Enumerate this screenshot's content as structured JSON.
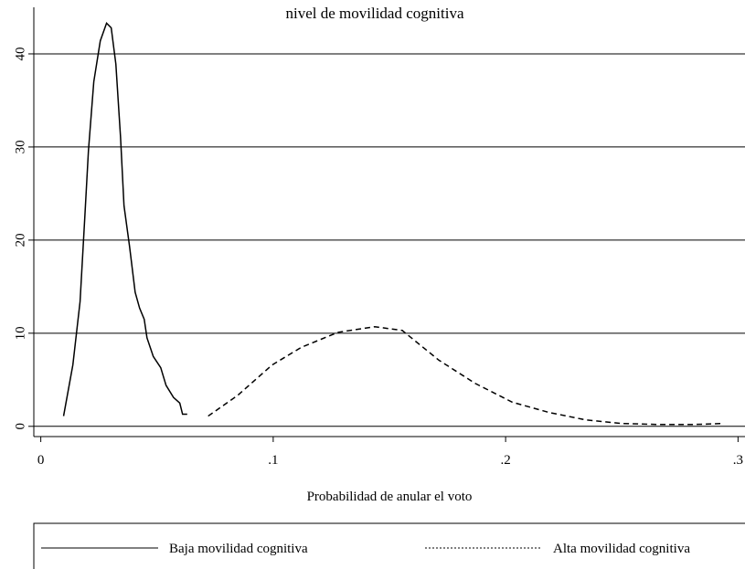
{
  "chart_data": {
    "type": "line",
    "title": "nivel de movilidad cognitiva",
    "x_label": "Probabilidad de anular el voto",
    "xlim": [
      -0.003,
      0.303
    ],
    "ylim": [
      -1.1,
      45
    ],
    "xticks": [
      0,
      {
        "value": 0.1,
        "label": ".1"
      },
      {
        "value": 0.2,
        "label": ".2"
      },
      {
        "value": 0.3,
        "label": ".3"
      }
    ],
    "yticks": [
      0,
      10,
      20,
      30,
      40
    ],
    "grid": true,
    "legend": "bottom",
    "series": [
      {
        "name": "Baja movilidad cognitiva",
        "color": "#000000",
        "dash": "solid",
        "x": [
          0.0098,
          0.0138,
          0.0169,
          0.0189,
          0.0205,
          0.0228,
          0.0256,
          0.0283,
          0.0303,
          0.0323,
          0.0343,
          0.0358,
          0.0382,
          0.0406,
          0.0425,
          0.0445,
          0.0457,
          0.0484,
          0.0516,
          0.0539,
          0.0571,
          0.0598,
          0.061,
          0.063
        ],
        "values": [
          1.1,
          6.6,
          13.4,
          22.3,
          29.6,
          37,
          41.4,
          43.3,
          42.8,
          38.9,
          31.1,
          23.7,
          19.3,
          14.4,
          12.7,
          11.5,
          9.5,
          7.5,
          6.3,
          4.4,
          3.1,
          2.5,
          1.3,
          1.3
        ]
      },
      {
        "name": "Alta movilidad cognitiva",
        "color": "#000000",
        "dash": "dashed",
        "x": [
          0.072,
          0.0846,
          0.0996,
          0.1122,
          0.128,
          0.1437,
          0.1555,
          0.1713,
          0.187,
          0.2028,
          0.2185,
          0.2343,
          0.25,
          0.2657,
          0.2815,
          0.2933
        ],
        "values": [
          1.1,
          3.3,
          6.6,
          8.5,
          10.1,
          10.7,
          10.3,
          7.1,
          4.6,
          2.6,
          1.5,
          0.7,
          0.3,
          0.2,
          0.2,
          0.3
        ]
      }
    ]
  }
}
